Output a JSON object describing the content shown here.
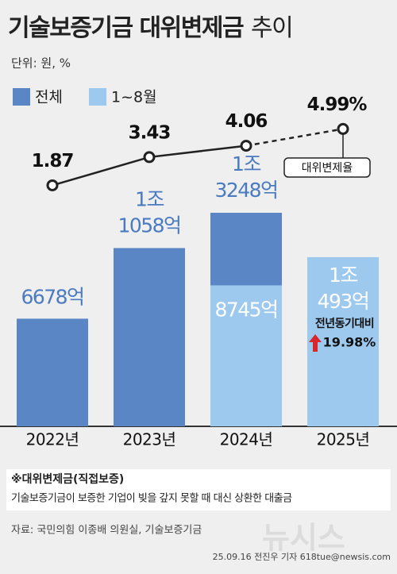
{
  "chart_data": {
    "type": "bar",
    "title": "기술보증기금 대위변제금",
    "title_tail": "추이",
    "unit": "단위: 원, %",
    "categories": [
      "2022년",
      "2023년",
      "2024년",
      "2025년"
    ],
    "series": [
      {
        "name": "전체",
        "color": "#5b86c6",
        "values": [
          6678,
          11058,
          13248,
          null
        ],
        "value_labels": [
          "6678억",
          "1조 1058억",
          "1조 3248억",
          null
        ]
      },
      {
        "name": "1~8월",
        "color": "#9dc9ee",
        "values": [
          null,
          null,
          8745,
          10493
        ],
        "value_labels": [
          null,
          null,
          "8745억",
          "1조 493억"
        ]
      }
    ],
    "line": {
      "type": "line",
      "name": "대위변제율",
      "color": "#222222",
      "values": [
        1.87,
        3.43,
        4.06,
        4.99
      ],
      "value_labels": [
        "1.87",
        "3.43",
        "4.06",
        "4.99%"
      ]
    },
    "yoy_label": "전년동기대비",
    "yoy_text": "19.98%",
    "note_title": "※대위변제금(직접보증)",
    "note_text": "기술보증기금이 보증한 기업이 빚을 갚지 못할 때 대신 상환한 대출금",
    "source": "자료: 국민의힘 이종배 의원실, 기술보증기금",
    "credit": "25.09.16 전진우 기자 618tue@newsis.com",
    "watermark": "뉴시스"
  }
}
